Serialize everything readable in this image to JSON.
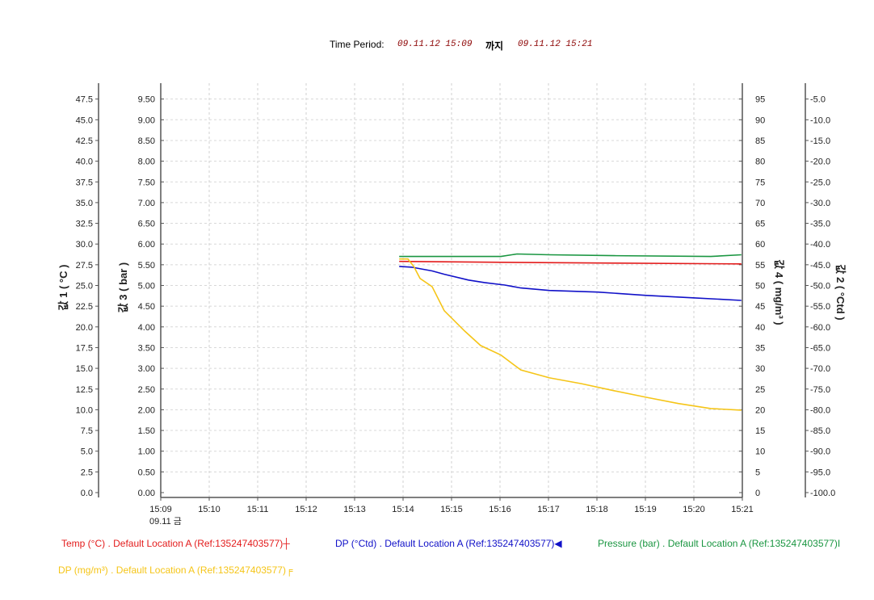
{
  "header": {
    "label": "Time Period:",
    "from": "09.11.12 15:09",
    "sep": "까지",
    "to": "09.11.12 15:21"
  },
  "chart_data": {
    "type": "line",
    "x_unit": "minutes after 15:09",
    "xticks": [
      "15:09",
      "15:10",
      "15:11",
      "15:12",
      "15:13",
      "15:14",
      "15:15",
      "15:16",
      "15:17",
      "15:18",
      "15:19",
      "15:20",
      "15:21"
    ],
    "x_date_label": "09.11 금",
    "grid": true,
    "axes": [
      {
        "id": "a1",
        "title": "값 1 ( °C )",
        "range": [
          0,
          50
        ],
        "step": 2.5,
        "decimals": 1,
        "side": "left-outer"
      },
      {
        "id": "a3",
        "title": "값 3 ( bar )",
        "range": [
          0,
          10
        ],
        "step": 0.5,
        "decimals": 2,
        "side": "left-inner"
      },
      {
        "id": "a4",
        "title": "값 4 ( mg/m³ )",
        "range": [
          0,
          100
        ],
        "step": 5,
        "decimals": 0,
        "side": "right-inner"
      },
      {
        "id": "a2",
        "title": "값 2 ( °Ctd )",
        "range": [
          -100,
          0
        ],
        "step": 5,
        "decimals": 1,
        "side": "right-outer"
      }
    ],
    "series": [
      {
        "name": "Temp (°C)",
        "axis": "a1",
        "color": "#e31b1b",
        "legend": "Temp (°C)  . Default Location A (Ref:135247403577)┼",
        "x": [
          4.92,
          7.02,
          9.35,
          11.98
        ],
        "y": [
          27.9,
          27.8,
          27.7,
          27.6
        ]
      },
      {
        "name": "DP (°Ctd)",
        "axis": "a2",
        "color": "#1010c8",
        "legend": "DP (°Ctd)  . Default Location A (Ref:135247403577)◀",
        "x": [
          4.92,
          5.18,
          5.6,
          5.85,
          6.35,
          6.68,
          7.1,
          7.43,
          8.02,
          9.02,
          10.02,
          11.02,
          11.98
        ],
        "y": [
          -45.4,
          -45.6,
          -46.5,
          -47.3,
          -48.7,
          -49.3,
          -49.9,
          -50.6,
          -51.2,
          -51.6,
          -52.4,
          -53.0,
          -53.6
        ]
      },
      {
        "name": "Pressure (bar)",
        "axis": "a3",
        "color": "#1a9641",
        "legend": "Pressure (bar)  . Default Location A (Ref:135247403577)I",
        "x": [
          4.92,
          7.02,
          7.35,
          8.02,
          9.35,
          11.35,
          11.98
        ],
        "y": [
          5.7,
          5.7,
          5.76,
          5.74,
          5.72,
          5.7,
          5.74
        ]
      },
      {
        "name": "DP (mg/m³)",
        "axis": "a4",
        "color": "#f5c518",
        "legend": "DP (mg/m³)  . Default Location A (Ref:135247403577)╒",
        "x": [
          4.92,
          5.1,
          5.22,
          5.35,
          5.6,
          5.85,
          6.27,
          6.6,
          7.02,
          7.43,
          8.02,
          8.68,
          9.35,
          10.02,
          10.68,
          11.35,
          11.98
        ],
        "y": [
          56.4,
          56.4,
          54.6,
          51.7,
          49.7,
          43.9,
          39.0,
          35.5,
          33.2,
          29.6,
          27.7,
          26.3,
          24.6,
          23.0,
          21.5,
          20.3,
          19.9
        ]
      }
    ]
  }
}
